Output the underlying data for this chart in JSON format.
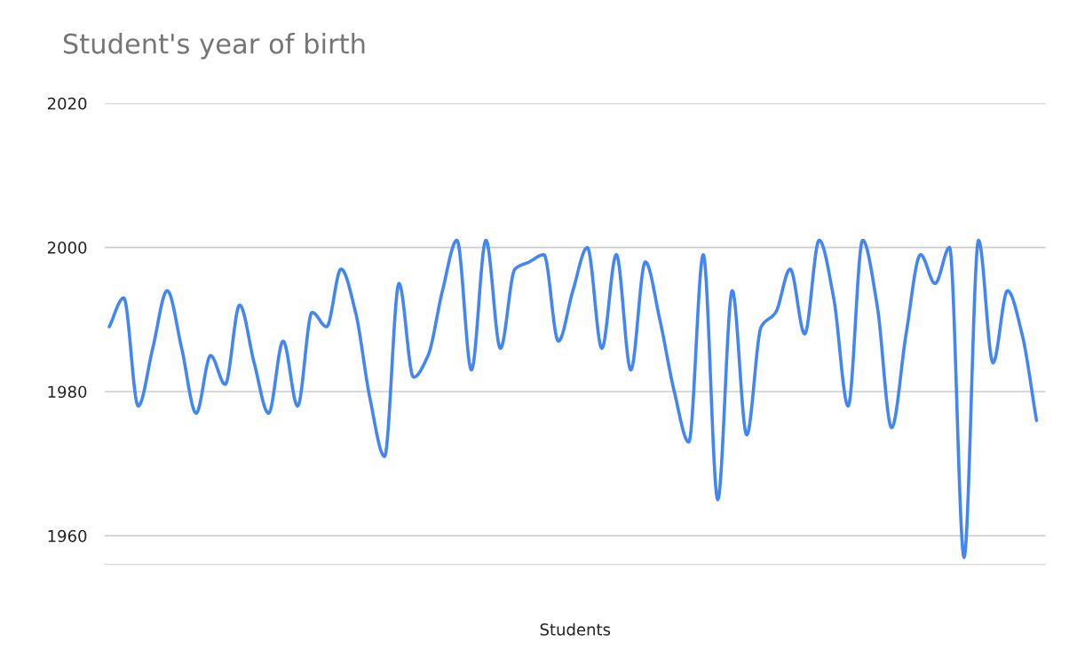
{
  "chart_data": {
    "type": "line",
    "title": "Student's year of birth",
    "xlabel": "Students",
    "categories": [
      null,
      null,
      null,
      null,
      null,
      null,
      null,
      null,
      null,
      null,
      null,
      null,
      null,
      null,
      null,
      null,
      null,
      null,
      null,
      null,
      null,
      null,
      null,
      null,
      null,
      null,
      null,
      null,
      null,
      null,
      null,
      null,
      null,
      null,
      null,
      null,
      null,
      null,
      null,
      null,
      null,
      null,
      null,
      null,
      null,
      null,
      null,
      null,
      null,
      null,
      null,
      null,
      null,
      null,
      null,
      null,
      null,
      null,
      null,
      null,
      null,
      null,
      null,
      null,
      null
    ],
    "series": [
      {
        "color": "#4285f4",
        "values": [
          1989,
          1993,
          1978,
          1986,
          1994,
          1986,
          1977,
          1985,
          1981,
          1992,
          1984,
          1977,
          1987,
          1978,
          1991,
          1989,
          1997,
          1991,
          1979,
          1971,
          1995,
          1982,
          1985,
          1994,
          2001,
          1983,
          2001,
          1986,
          1997,
          1998,
          1999,
          1987,
          1994,
          2000,
          1986,
          1999,
          1983,
          1998,
          1990,
          1980,
          1973,
          1999,
          1965,
          1994,
          1974,
          1989,
          1991,
          1997,
          1988,
          2001,
          1993,
          1978,
          2001,
          1992,
          1975,
          1988,
          1999,
          1995,
          2000,
          1957,
          2001,
          1984,
          1994,
          1988,
          1976
        ]
      }
    ],
    "ylim": [
      1956,
      2020
    ],
    "yticks": [
      1960,
      1980,
      2000,
      2020
    ],
    "grid": "y",
    "legend": false,
    "marker": "none",
    "line_style": "solid"
  }
}
